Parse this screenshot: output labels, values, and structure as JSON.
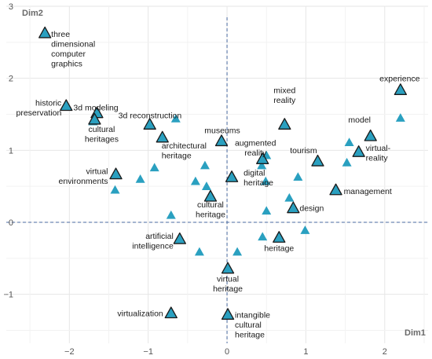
{
  "chart_data": {
    "type": "scatter",
    "xlabel": "Dim1",
    "ylabel": "Dim2",
    "xlim": [
      -2.8,
      2.55
    ],
    "ylim": [
      -1.68,
      3.0
    ],
    "xticks": [
      -2,
      -1,
      0,
      1,
      2
    ],
    "yticks": [
      -1,
      0,
      1,
      2,
      3
    ],
    "grid": true,
    "zero_lines": "dashed",
    "colors": {
      "labeled_marker_fill": "#2aa0c0",
      "labeled_marker_stroke": "#1a1a1a",
      "document_marker_fill": "#2aa0c0",
      "zero_line": "#4a6aa0",
      "grid": "#e6e6e6"
    },
    "labeled_points": [
      {
        "label": "three dimensional computer graphics",
        "x": -2.31,
        "y": 2.63
      },
      {
        "label": "historic preservation",
        "x": -2.04,
        "y": 1.62
      },
      {
        "label": "3d modeling",
        "x": -1.65,
        "y": 1.52
      },
      {
        "label": "cultural heritages",
        "x": -1.68,
        "y": 1.43
      },
      {
        "label": "3d reconstruction",
        "x": -0.98,
        "y": 1.36
      },
      {
        "label": "architectural heritage",
        "x": -0.82,
        "y": 1.18
      },
      {
        "label": "museums",
        "x": -0.07,
        "y": 1.13
      },
      {
        "label": "mixed reality",
        "x": 0.73,
        "y": 1.36
      },
      {
        "label": "experience",
        "x": 2.2,
        "y": 1.84
      },
      {
        "label": "model",
        "x": 1.82,
        "y": 1.2
      },
      {
        "label": "virtual-reality",
        "x": 1.67,
        "y": 0.98
      },
      {
        "label": "tourism",
        "x": 1.15,
        "y": 0.85
      },
      {
        "label": "augmented reality",
        "x": 0.45,
        "y": 0.88
      },
      {
        "label": "digital heritage",
        "x": 0.06,
        "y": 0.63
      },
      {
        "label": "management",
        "x": 1.38,
        "y": 0.45
      },
      {
        "label": "virtual environments",
        "x": -1.41,
        "y": 0.67
      },
      {
        "label": "cultural heritage",
        "x": -0.21,
        "y": 0.36
      },
      {
        "label": "design",
        "x": 0.84,
        "y": 0.2
      },
      {
        "label": "artificial intelligence",
        "x": -0.6,
        "y": -0.23
      },
      {
        "label": "heritage",
        "x": 0.66,
        "y": -0.21
      },
      {
        "label": "virtual heritage",
        "x": 0.01,
        "y": -0.64
      },
      {
        "label": "virtualization",
        "x": -0.71,
        "y": -1.26
      },
      {
        "label": "intangible cultural heritage",
        "x": 0.01,
        "y": -1.28
      }
    ],
    "document_points": [
      {
        "x": -0.65,
        "y": 1.44
      },
      {
        "x": -1.7,
        "y": 1.4
      },
      {
        "x": -1.42,
        "y": 0.45
      },
      {
        "x": -1.1,
        "y": 0.6
      },
      {
        "x": -0.92,
        "y": 0.76
      },
      {
        "x": -0.71,
        "y": 0.1
      },
      {
        "x": -0.4,
        "y": 0.57
      },
      {
        "x": -0.28,
        "y": 0.79
      },
      {
        "x": -0.26,
        "y": 0.5
      },
      {
        "x": -0.35,
        "y": -0.41
      },
      {
        "x": 0.13,
        "y": -0.41
      },
      {
        "x": 0.44,
        "y": 0.79
      },
      {
        "x": 0.5,
        "y": 0.93
      },
      {
        "x": 0.49,
        "y": 0.57
      },
      {
        "x": 0.5,
        "y": 0.16
      },
      {
        "x": 0.45,
        "y": -0.2
      },
      {
        "x": 0.79,
        "y": 0.34
      },
      {
        "x": 0.9,
        "y": 0.63
      },
      {
        "x": 0.99,
        "y": -0.11
      },
      {
        "x": 1.52,
        "y": 0.83
      },
      {
        "x": 1.55,
        "y": 1.11
      },
      {
        "x": 2.2,
        "y": 1.45
      }
    ]
  }
}
